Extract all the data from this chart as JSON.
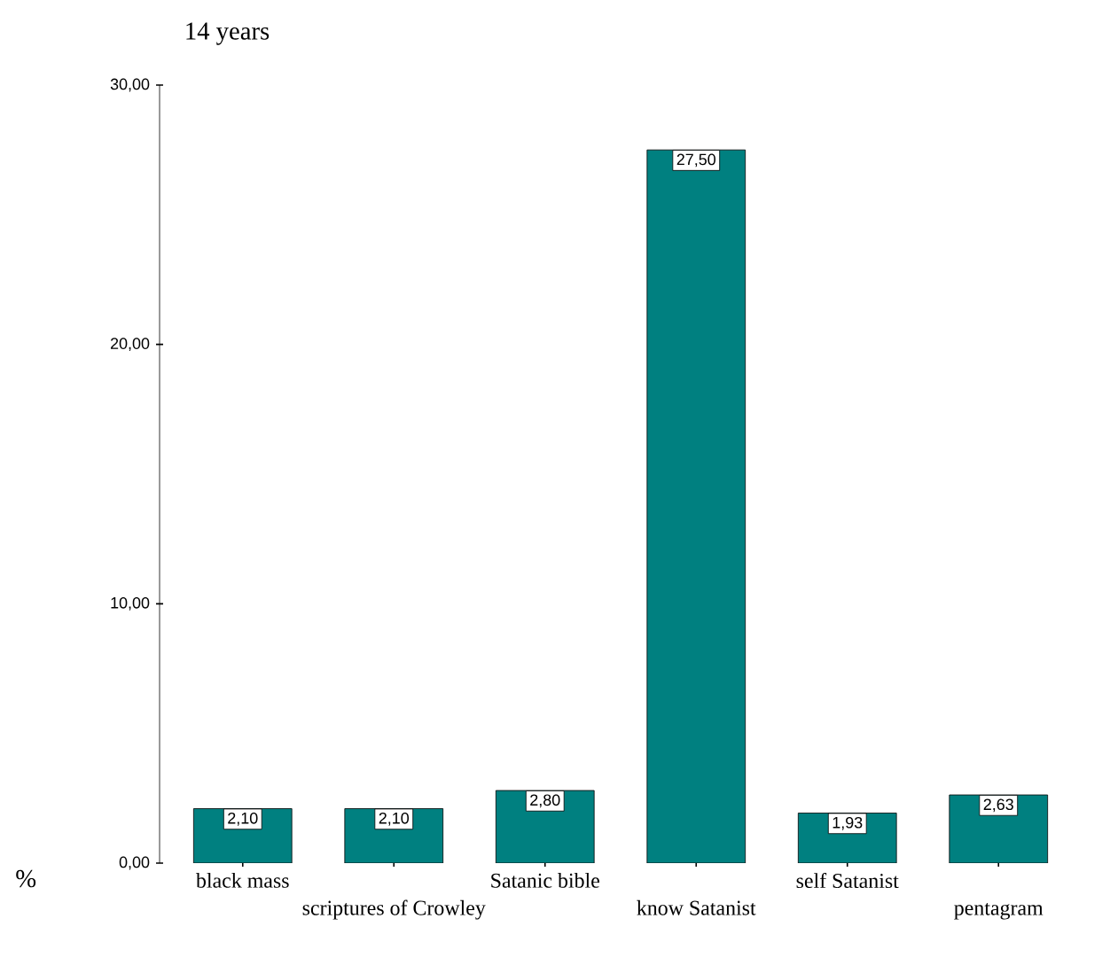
{
  "chart_data": {
    "type": "bar",
    "title": "14 years",
    "ylabel": "%",
    "categories": [
      "black mass",
      "scriptures of Crowley",
      "Satanic bible",
      "know Satanist",
      "self Satanist",
      "pentagram"
    ],
    "values": [
      2.1,
      2.1,
      2.8,
      27.5,
      1.93,
      2.63
    ],
    "value_labels": [
      "2,10",
      "2,10",
      "2,80",
      "27,50",
      "1,93",
      "2,63"
    ],
    "color": "#008080",
    "ylim": [
      0,
      30
    ],
    "yticks": [
      {
        "value": 0,
        "label": "0,00"
      },
      {
        "value": 10,
        "label": "10,00"
      },
      {
        "value": 20,
        "label": "20,00"
      },
      {
        "value": 30,
        "label": "30,00"
      }
    ],
    "grid": false
  }
}
